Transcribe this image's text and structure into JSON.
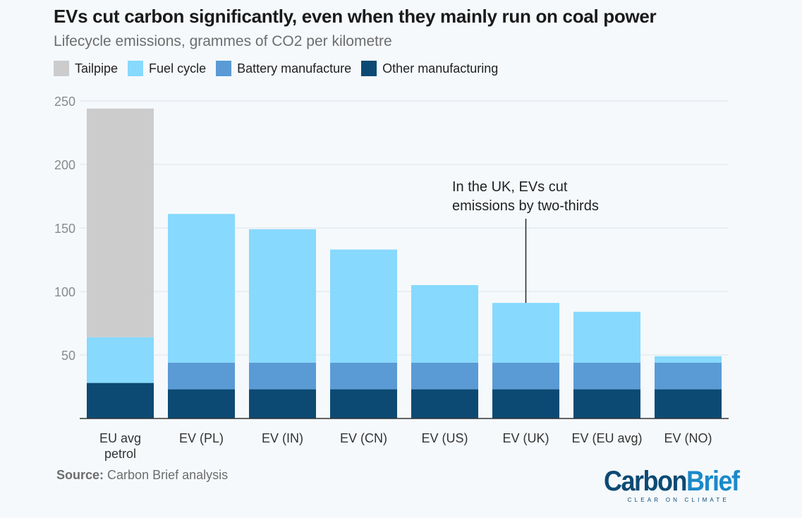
{
  "chart_data": {
    "type": "bar",
    "stacked": true,
    "title": "EVs cut carbon significantly, even when they mainly run on coal power",
    "subtitle": "Lifecycle emissions, grammes of CO2 per kilometre",
    "categories": [
      "EU avg petrol",
      "EV (PL)",
      "EV (IN)",
      "EV (CN)",
      "EV (US)",
      "EV (UK)",
      "EV (EU avg)",
      "EV (NO)"
    ],
    "category_lines": [
      [
        "EU avg",
        "petrol"
      ],
      [
        "EV (PL)"
      ],
      [
        "EV (IN)"
      ],
      [
        "EV (CN)"
      ],
      [
        "EV (US)"
      ],
      [
        "EV (UK)"
      ],
      [
        "EV (EU avg)"
      ],
      [
        "EV (NO)"
      ]
    ],
    "series": [
      {
        "name": "Other manufacturing",
        "color": "#0c4a73",
        "values": [
          28,
          23,
          23,
          23,
          23,
          23,
          23,
          23
        ]
      },
      {
        "name": "Battery manufacture",
        "color": "#5a9bd5",
        "values": [
          0,
          21,
          21,
          21,
          21,
          21,
          21,
          21
        ]
      },
      {
        "name": "Fuel cycle",
        "color": "#87d9fd",
        "values": [
          36,
          117,
          105,
          89,
          61,
          47,
          40,
          5
        ]
      },
      {
        "name": "Tailpipe",
        "color": "#cccccc",
        "values": [
          180,
          0,
          0,
          0,
          0,
          0,
          0,
          0
        ]
      }
    ],
    "legend_order": [
      "Tailpipe",
      "Fuel cycle",
      "Battery manufacture",
      "Other manufacturing"
    ],
    "ylim": [
      0,
      250
    ],
    "yticks": [
      50,
      100,
      150,
      200,
      250
    ],
    "grid": true,
    "legend_position": "top-left",
    "annotation": {
      "lines": [
        "In the UK, EVs cut",
        "emissions by two-thirds"
      ],
      "category": "EV (UK)"
    }
  },
  "source": {
    "label": "Source:",
    "text": "Carbon Brief analysis"
  },
  "logo": {
    "part1": "Carbon",
    "part2": "Brief",
    "tagline": "CLEAR ON CLIMATE"
  }
}
